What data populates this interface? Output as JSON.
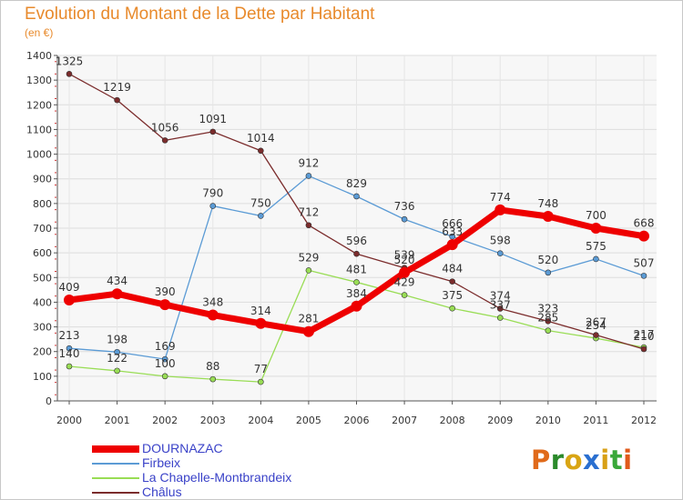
{
  "header": {
    "title": "Evolution du Montant de la Dette par Habitant",
    "unit": "(en €)"
  },
  "logo": {
    "text": "Proxiti",
    "letters": [
      {
        "ch": "P",
        "color": "#e06a1a"
      },
      {
        "ch": "r",
        "color": "#2b8a2b"
      },
      {
        "ch": "o",
        "color": "#d9a514"
      },
      {
        "ch": "x",
        "color": "#2a6fd0"
      },
      {
        "ch": "i",
        "color": "#d8a016"
      },
      {
        "ch": "t",
        "color": "#3aa83a"
      },
      {
        "ch": "i",
        "color": "#e05a1a"
      }
    ]
  },
  "chart_data": {
    "type": "line",
    "title": "Evolution du Montant de la Dette par Habitant",
    "ylabel": "(en €)",
    "xlabel": "",
    "x": [
      "2000",
      "2001",
      "2002",
      "2003",
      "2004",
      "2005",
      "2006",
      "2007",
      "2008",
      "2009",
      "2010",
      "2011",
      "2012"
    ],
    "ylim": [
      0,
      1400
    ],
    "yticks": [
      0,
      100,
      200,
      300,
      400,
      500,
      600,
      700,
      800,
      900,
      1000,
      1100,
      1200,
      1300,
      1400
    ],
    "grid": true,
    "legend_position": "bottom-left",
    "series": [
      {
        "name": "DOURNAZAC",
        "color": "#ee0000",
        "values": [
          409,
          434,
          390,
          348,
          314,
          281,
          384,
          520,
          633,
          774,
          748,
          700,
          668
        ]
      },
      {
        "name": "Firbeix",
        "color": "#5b9bd5",
        "values": [
          213,
          198,
          169,
          790,
          750,
          912,
          829,
          736,
          666,
          598,
          520,
          575,
          507
        ]
      },
      {
        "name": "La Chapelle-Montbrandeix",
        "color": "#99dd55",
        "values": [
          140,
          122,
          100,
          88,
          77,
          529,
          481,
          429,
          375,
          337,
          285,
          254,
          217
        ]
      },
      {
        "name": "Châlus",
        "color": "#7b2c2c",
        "values": [
          1325,
          1219,
          1056,
          1091,
          1014,
          712,
          596,
          539,
          484,
          374,
          323,
          267,
          210
        ]
      }
    ]
  }
}
